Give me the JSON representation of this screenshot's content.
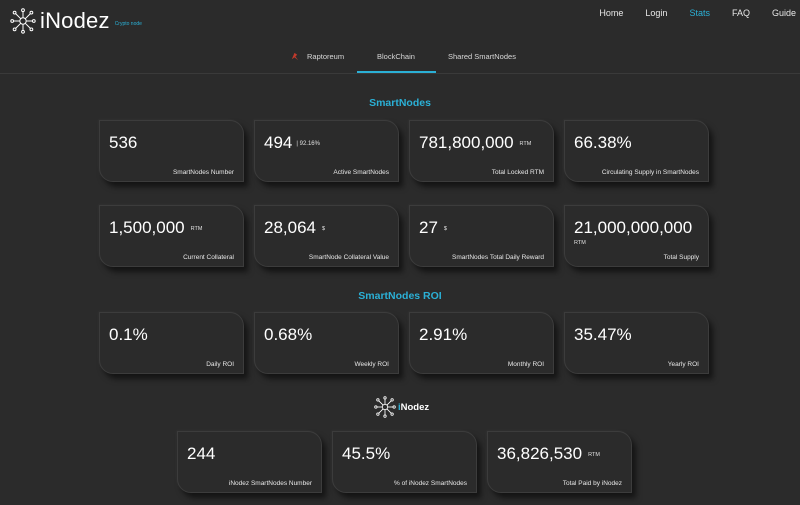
{
  "header": {
    "brand_i": "i",
    "brand_rest": "Nodez",
    "tagline": "Crypto node",
    "nav": [
      "Home",
      "Login",
      "Stats",
      "FAQ",
      "Guide"
    ],
    "active_nav": "Stats"
  },
  "tabs": [
    "Raptoreum",
    "BlockChain",
    "Shared SmartNodes"
  ],
  "active_tab": "BlockChain",
  "sections": {
    "smartnodes": "SmartNodes",
    "roi": "SmartNodes ROI",
    "inodez_i": "i",
    "inodez_rest": "Nodez"
  },
  "cards": {
    "smartnodes_number": {
      "value": "536",
      "label": "SmartNodes Number"
    },
    "active_smartnodes": {
      "value": "494",
      "extra": "| 92.16%",
      "label": "Active SmartNodes"
    },
    "total_locked": {
      "value": "781,800,000",
      "unit": "RTM",
      "label": "Total Locked RTM"
    },
    "circulating": {
      "value": "66.38%",
      "label": "Circulating Supply in SmartNodes"
    },
    "current_collateral": {
      "value": "1,500,000",
      "unit": "RTM",
      "label": "Current Collateral"
    },
    "collateral_value": {
      "value": "28,064",
      "unit": "$",
      "label": "SmartNode Collateral Value"
    },
    "daily_reward": {
      "value": "27",
      "unit": "$",
      "label": "SmartNodes Total Daily Reward"
    },
    "total_supply": {
      "value": "21,000,000,000",
      "unit": "RTM",
      "label": "Total Supply"
    },
    "daily_roi": {
      "value": "0.1%",
      "label": "Daily ROI"
    },
    "weekly_roi": {
      "value": "0.68%",
      "label": "Weekly ROI"
    },
    "monthly_roi": {
      "value": "2.91%",
      "label": "Monthly ROI"
    },
    "yearly_roi": {
      "value": "35.47%",
      "label": "Yearly ROI"
    },
    "inodez_number": {
      "value": "244",
      "label": "iNodez SmartNodes Number"
    },
    "inodez_percent": {
      "value": "45.5%",
      "label": "% of iNodez SmartNodes"
    },
    "total_paid": {
      "value": "36,826,530",
      "unit": "RTM",
      "label": "Total Paid by iNodez"
    }
  },
  "colors": {
    "accent": "#2bb0d6",
    "background": "#2b2b2b",
    "text": "#ffffff"
  }
}
